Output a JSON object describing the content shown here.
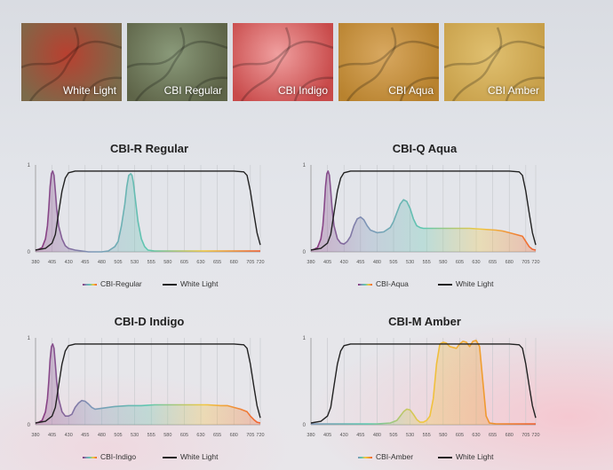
{
  "thumbnails": [
    {
      "label": "White Light",
      "base": "#7c6a4a",
      "tint": "#b84030"
    },
    {
      "label": "CBI Regular",
      "base": "#5e6448",
      "tint": "#8a9a7a"
    },
    {
      "label": "CBI Indigo",
      "base": "#c84a4a",
      "tint": "#f0a0a0"
    },
    {
      "label": "CBI Aqua",
      "base": "#b8822e",
      "tint": "#d8a860"
    },
    {
      "label": "CBI Amber",
      "base": "#c8a04a",
      "tint": "#e0c070"
    }
  ],
  "chart_data": [
    {
      "type": "line",
      "title": "CBI-R Regular",
      "xlim": [
        380,
        720
      ],
      "ylim": [
        0,
        1
      ],
      "x_ticks": [
        "380",
        "405",
        "430",
        "455",
        "480",
        "505",
        "530",
        "555",
        "580",
        "605",
        "630",
        "655",
        "680",
        "705",
        "720"
      ],
      "y_ticks": [
        "0",
        "1"
      ],
      "grid": true,
      "legend": "bottom",
      "colors": {
        "accent": "#8a2f7a",
        "white_light": "#222222"
      },
      "series": [
        {
          "name": "CBI-Regular",
          "gradient": [
            "#8a2f7a",
            "#7e97b8",
            "#5ec8b0",
            "#f0c840",
            "#f06030"
          ],
          "x": [
            380,
            385,
            390,
            395,
            398,
            400,
            402,
            404,
            406,
            408,
            410,
            412,
            415,
            420,
            425,
            430,
            440,
            450,
            460,
            470,
            480,
            490,
            500,
            505,
            510,
            515,
            518,
            521,
            524,
            526,
            528,
            531,
            535,
            540,
            545,
            550,
            560,
            580,
            600,
            620,
            650,
            680,
            700,
            710,
            720
          ],
          "y": [
            0.02,
            0.03,
            0.05,
            0.15,
            0.3,
            0.5,
            0.75,
            0.9,
            0.93,
            0.88,
            0.7,
            0.5,
            0.3,
            0.15,
            0.07,
            0.04,
            0.02,
            0.01,
            0,
            0,
            0,
            0.01,
            0.06,
            0.12,
            0.3,
            0.55,
            0.75,
            0.88,
            0.9,
            0.88,
            0.8,
            0.6,
            0.35,
            0.15,
            0.06,
            0.02,
            0.01,
            0.01,
            0.01,
            0.01,
            0.01,
            0.01,
            0.01,
            0.01,
            0.01
          ]
        },
        {
          "name": "White Light",
          "gradient": [
            "#222222"
          ],
          "x": [
            380,
            395,
            405,
            410,
            415,
            420,
            425,
            430,
            440,
            460,
            500,
            600,
            680,
            695,
            700,
            705,
            710,
            715,
            720
          ],
          "y": [
            0.02,
            0.04,
            0.1,
            0.2,
            0.45,
            0.7,
            0.85,
            0.91,
            0.93,
            0.93,
            0.93,
            0.93,
            0.93,
            0.92,
            0.88,
            0.7,
            0.45,
            0.22,
            0.08
          ]
        }
      ]
    },
    {
      "type": "line",
      "title": "CBI-Q Aqua",
      "xlim": [
        380,
        720
      ],
      "ylim": [
        0,
        1
      ],
      "x_ticks": [
        "380",
        "405",
        "430",
        "455",
        "480",
        "505",
        "530",
        "555",
        "580",
        "605",
        "630",
        "655",
        "680",
        "705",
        "720"
      ],
      "y_ticks": [
        "0",
        "1"
      ],
      "grid": true,
      "legend": "bottom",
      "colors": {
        "accent": "#8a2f7a",
        "white_light": "#222222"
      },
      "series": [
        {
          "name": "CBI-Aqua",
          "gradient": [
            "#8a2f7a",
            "#7e97b8",
            "#5ec8b0",
            "#f0c840",
            "#f06030"
          ],
          "x": [
            380,
            385,
            390,
            395,
            398,
            400,
            402,
            404,
            406,
            408,
            410,
            412,
            415,
            420,
            425,
            430,
            435,
            440,
            445,
            450,
            455,
            460,
            465,
            470,
            480,
            490,
            500,
            505,
            510,
            515,
            520,
            525,
            530,
            535,
            540,
            545,
            550,
            560,
            580,
            600,
            620,
            640,
            660,
            670,
            680,
            690,
            700,
            705,
            710,
            715,
            720
          ],
          "y": [
            0.02,
            0.03,
            0.05,
            0.15,
            0.3,
            0.5,
            0.75,
            0.9,
            0.93,
            0.88,
            0.7,
            0.5,
            0.3,
            0.15,
            0.1,
            0.09,
            0.12,
            0.18,
            0.3,
            0.38,
            0.4,
            0.37,
            0.3,
            0.25,
            0.22,
            0.23,
            0.28,
            0.35,
            0.45,
            0.55,
            0.6,
            0.58,
            0.5,
            0.38,
            0.3,
            0.28,
            0.27,
            0.27,
            0.27,
            0.27,
            0.27,
            0.26,
            0.25,
            0.24,
            0.22,
            0.2,
            0.18,
            0.12,
            0.06,
            0.03,
            0.02
          ]
        },
        {
          "name": "White Light",
          "gradient": [
            "#222222"
          ],
          "x": [
            380,
            395,
            405,
            410,
            415,
            420,
            425,
            430,
            440,
            460,
            500,
            600,
            680,
            695,
            700,
            705,
            710,
            715,
            720
          ],
          "y": [
            0.02,
            0.04,
            0.1,
            0.2,
            0.45,
            0.7,
            0.85,
            0.91,
            0.93,
            0.93,
            0.93,
            0.93,
            0.93,
            0.92,
            0.88,
            0.7,
            0.45,
            0.22,
            0.08
          ]
        }
      ]
    },
    {
      "type": "line",
      "title": "CBI-D Indigo",
      "xlim": [
        380,
        720
      ],
      "ylim": [
        0,
        1
      ],
      "x_ticks": [
        "380",
        "405",
        "430",
        "455",
        "480",
        "505",
        "530",
        "555",
        "580",
        "605",
        "630",
        "655",
        "680",
        "705",
        "720"
      ],
      "y_ticks": [
        "0",
        "1"
      ],
      "grid": true,
      "legend": "bottom",
      "colors": {
        "accent": "#8a2f7a",
        "white_light": "#222222"
      },
      "series": [
        {
          "name": "CBI-Indigo",
          "gradient": [
            "#8a2f7a",
            "#7e97b8",
            "#5ec8b0",
            "#f0c840",
            "#f06030"
          ],
          "x": [
            380,
            385,
            390,
            395,
            398,
            400,
            402,
            404,
            406,
            408,
            410,
            412,
            415,
            420,
            425,
            430,
            435,
            440,
            445,
            450,
            455,
            460,
            465,
            470,
            480,
            500,
            520,
            540,
            560,
            580,
            600,
            620,
            640,
            660,
            670,
            680,
            690,
            700,
            705,
            710,
            715,
            720
          ],
          "y": [
            0.02,
            0.03,
            0.05,
            0.15,
            0.3,
            0.5,
            0.75,
            0.9,
            0.93,
            0.88,
            0.7,
            0.5,
            0.3,
            0.15,
            0.1,
            0.1,
            0.12,
            0.2,
            0.25,
            0.28,
            0.27,
            0.24,
            0.2,
            0.18,
            0.19,
            0.21,
            0.22,
            0.22,
            0.23,
            0.23,
            0.23,
            0.23,
            0.23,
            0.22,
            0.22,
            0.2,
            0.18,
            0.15,
            0.1,
            0.06,
            0.03,
            0.02
          ]
        },
        {
          "name": "White Light",
          "gradient": [
            "#222222"
          ],
          "x": [
            380,
            395,
            405,
            410,
            415,
            420,
            425,
            430,
            440,
            460,
            500,
            600,
            680,
            695,
            700,
            705,
            710,
            715,
            720
          ],
          "y": [
            0.02,
            0.04,
            0.1,
            0.2,
            0.45,
            0.7,
            0.85,
            0.91,
            0.93,
            0.93,
            0.93,
            0.93,
            0.93,
            0.92,
            0.88,
            0.7,
            0.45,
            0.22,
            0.08
          ]
        }
      ]
    },
    {
      "type": "line",
      "title": "CBI-M Amber",
      "xlim": [
        380,
        720
      ],
      "ylim": [
        0,
        1
      ],
      "x_ticks": [
        "380",
        "405",
        "430",
        "455",
        "480",
        "505",
        "530",
        "555",
        "580",
        "605",
        "630",
        "655",
        "680",
        "705",
        "720"
      ],
      "y_ticks": [
        "0",
        "1"
      ],
      "grid": true,
      "legend": "bottom",
      "colors": {
        "accent": "#e8c830",
        "white_light": "#222222"
      },
      "series": [
        {
          "name": "CBI-Amber",
          "gradient": [
            "#7e97b8",
            "#5ec8b0",
            "#f0c840",
            "#f0a030",
            "#f06030"
          ],
          "x": [
            380,
            420,
            460,
            480,
            500,
            510,
            515,
            520,
            525,
            530,
            535,
            540,
            545,
            550,
            555,
            560,
            565,
            570,
            575,
            580,
            585,
            590,
            600,
            605,
            610,
            615,
            620,
            625,
            630,
            635,
            640,
            645,
            650,
            660,
            680,
            700,
            720
          ],
          "y": [
            0.01,
            0.01,
            0.01,
            0.01,
            0.02,
            0.05,
            0.1,
            0.15,
            0.18,
            0.17,
            0.12,
            0.06,
            0.03,
            0.03,
            0.05,
            0.1,
            0.3,
            0.7,
            0.93,
            0.95,
            0.94,
            0.9,
            0.88,
            0.93,
            0.96,
            0.95,
            0.9,
            0.96,
            0.97,
            0.9,
            0.5,
            0.1,
            0.02,
            0.01,
            0.01,
            0.01,
            0.01
          ]
        },
        {
          "name": "White Light",
          "gradient": [
            "#222222"
          ],
          "x": [
            380,
            395,
            405,
            410,
            415,
            420,
            425,
            430,
            440,
            460,
            500,
            600,
            680,
            695,
            700,
            705,
            710,
            715,
            720
          ],
          "y": [
            0.02,
            0.04,
            0.1,
            0.2,
            0.45,
            0.7,
            0.85,
            0.91,
            0.93,
            0.93,
            0.93,
            0.93,
            0.93,
            0.92,
            0.88,
            0.7,
            0.45,
            0.22,
            0.08
          ]
        }
      ]
    }
  ]
}
